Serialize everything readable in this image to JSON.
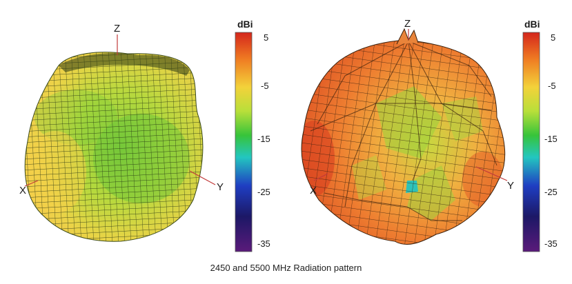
{
  "caption": "2450 and 5500 MHz Radiation pattern",
  "panels": [
    {
      "id": "2450",
      "axis_labels": {
        "z": "Z",
        "x": "X",
        "y": "Y"
      },
      "colorbar": {
        "unit": "dBi",
        "ticks": [
          "5",
          "-5",
          "-15",
          "-25",
          "-35"
        ]
      }
    },
    {
      "id": "5500",
      "axis_labels": {
        "z": "Z",
        "x": "X",
        "y": "Y"
      },
      "colorbar": {
        "unit": "dBi",
        "ticks": [
          "5",
          "-5",
          "-15",
          "-25",
          "-35"
        ]
      }
    }
  ],
  "colors": {
    "colorbar": [
      "#d4261c",
      "#ef7a22",
      "#f3d23a",
      "#b8df3a",
      "#37c43a",
      "#23c6c0",
      "#1f3ec2",
      "#1c1866",
      "#5a1a7a"
    ],
    "pattern1": [
      "#f0d24a",
      "#c6dd3e",
      "#8fcf3c"
    ],
    "pattern2": [
      "#e85a28",
      "#f08a32",
      "#f1c648",
      "#a8d63c",
      "#6cc93a"
    ]
  }
}
